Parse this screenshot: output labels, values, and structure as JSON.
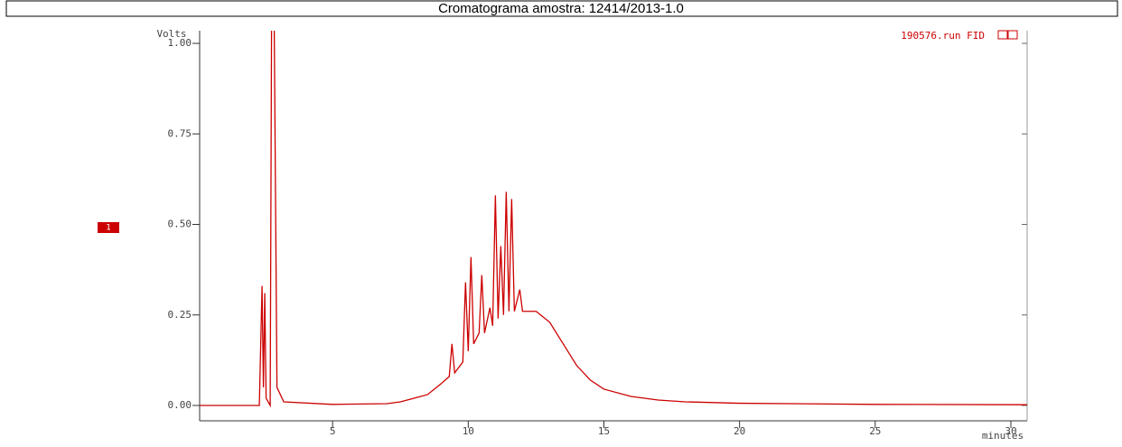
{
  "chart_data": {
    "type": "line",
    "title": "Cromatograma amostra: 12414/2013-1.0",
    "y_label": "Volts",
    "x_label": "minutes",
    "annotation": "190576.run FID",
    "x": [
      0.1,
      2.3,
      2.4,
      2.45,
      2.5,
      2.55,
      2.7,
      2.75,
      2.85,
      2.95,
      3.2,
      5.0,
      7.0,
      7.5,
      8.0,
      8.5,
      9.0,
      9.3,
      9.4,
      9.5,
      9.8,
      9.9,
      10.0,
      10.1,
      10.2,
      10.4,
      10.5,
      10.6,
      10.8,
      10.9,
      11.0,
      11.1,
      11.2,
      11.3,
      11.4,
      11.5,
      11.6,
      11.7,
      11.9,
      12.0,
      12.5,
      13.0,
      13.5,
      14.0,
      14.5,
      15.0,
      16.0,
      17.0,
      18.0,
      20.0,
      25.0,
      30.6
    ],
    "series": [
      {
        "name": "1",
        "color": "#cc0000",
        "values": [
          0.0,
          0.0,
          0.33,
          0.05,
          0.31,
          0.02,
          0.0,
          1.04,
          1.04,
          0.05,
          0.01,
          0.003,
          0.005,
          0.01,
          0.02,
          0.03,
          0.06,
          0.08,
          0.17,
          0.09,
          0.12,
          0.34,
          0.15,
          0.41,
          0.17,
          0.2,
          0.36,
          0.2,
          0.27,
          0.22,
          0.58,
          0.24,
          0.44,
          0.25,
          0.59,
          0.26,
          0.57,
          0.26,
          0.32,
          0.26,
          0.26,
          0.23,
          0.17,
          0.11,
          0.07,
          0.045,
          0.025,
          0.015,
          0.01,
          0.006,
          0.003,
          0.002
        ]
      }
    ],
    "xlim": [
      0.1,
      30.6
    ],
    "ylim": [
      -0.01,
      1.035
    ],
    "xticks": [
      5,
      10,
      15,
      20,
      25,
      30
    ],
    "yticks": [
      {
        "value": 0,
        "label": "0.00"
      },
      {
        "value": 0.25,
        "label": "0.25"
      },
      {
        "value": 0.5,
        "label": "0.50"
      },
      {
        "value": 0.75,
        "label": "0.75"
      },
      {
        "value": 1,
        "label": "1.00"
      }
    ]
  }
}
